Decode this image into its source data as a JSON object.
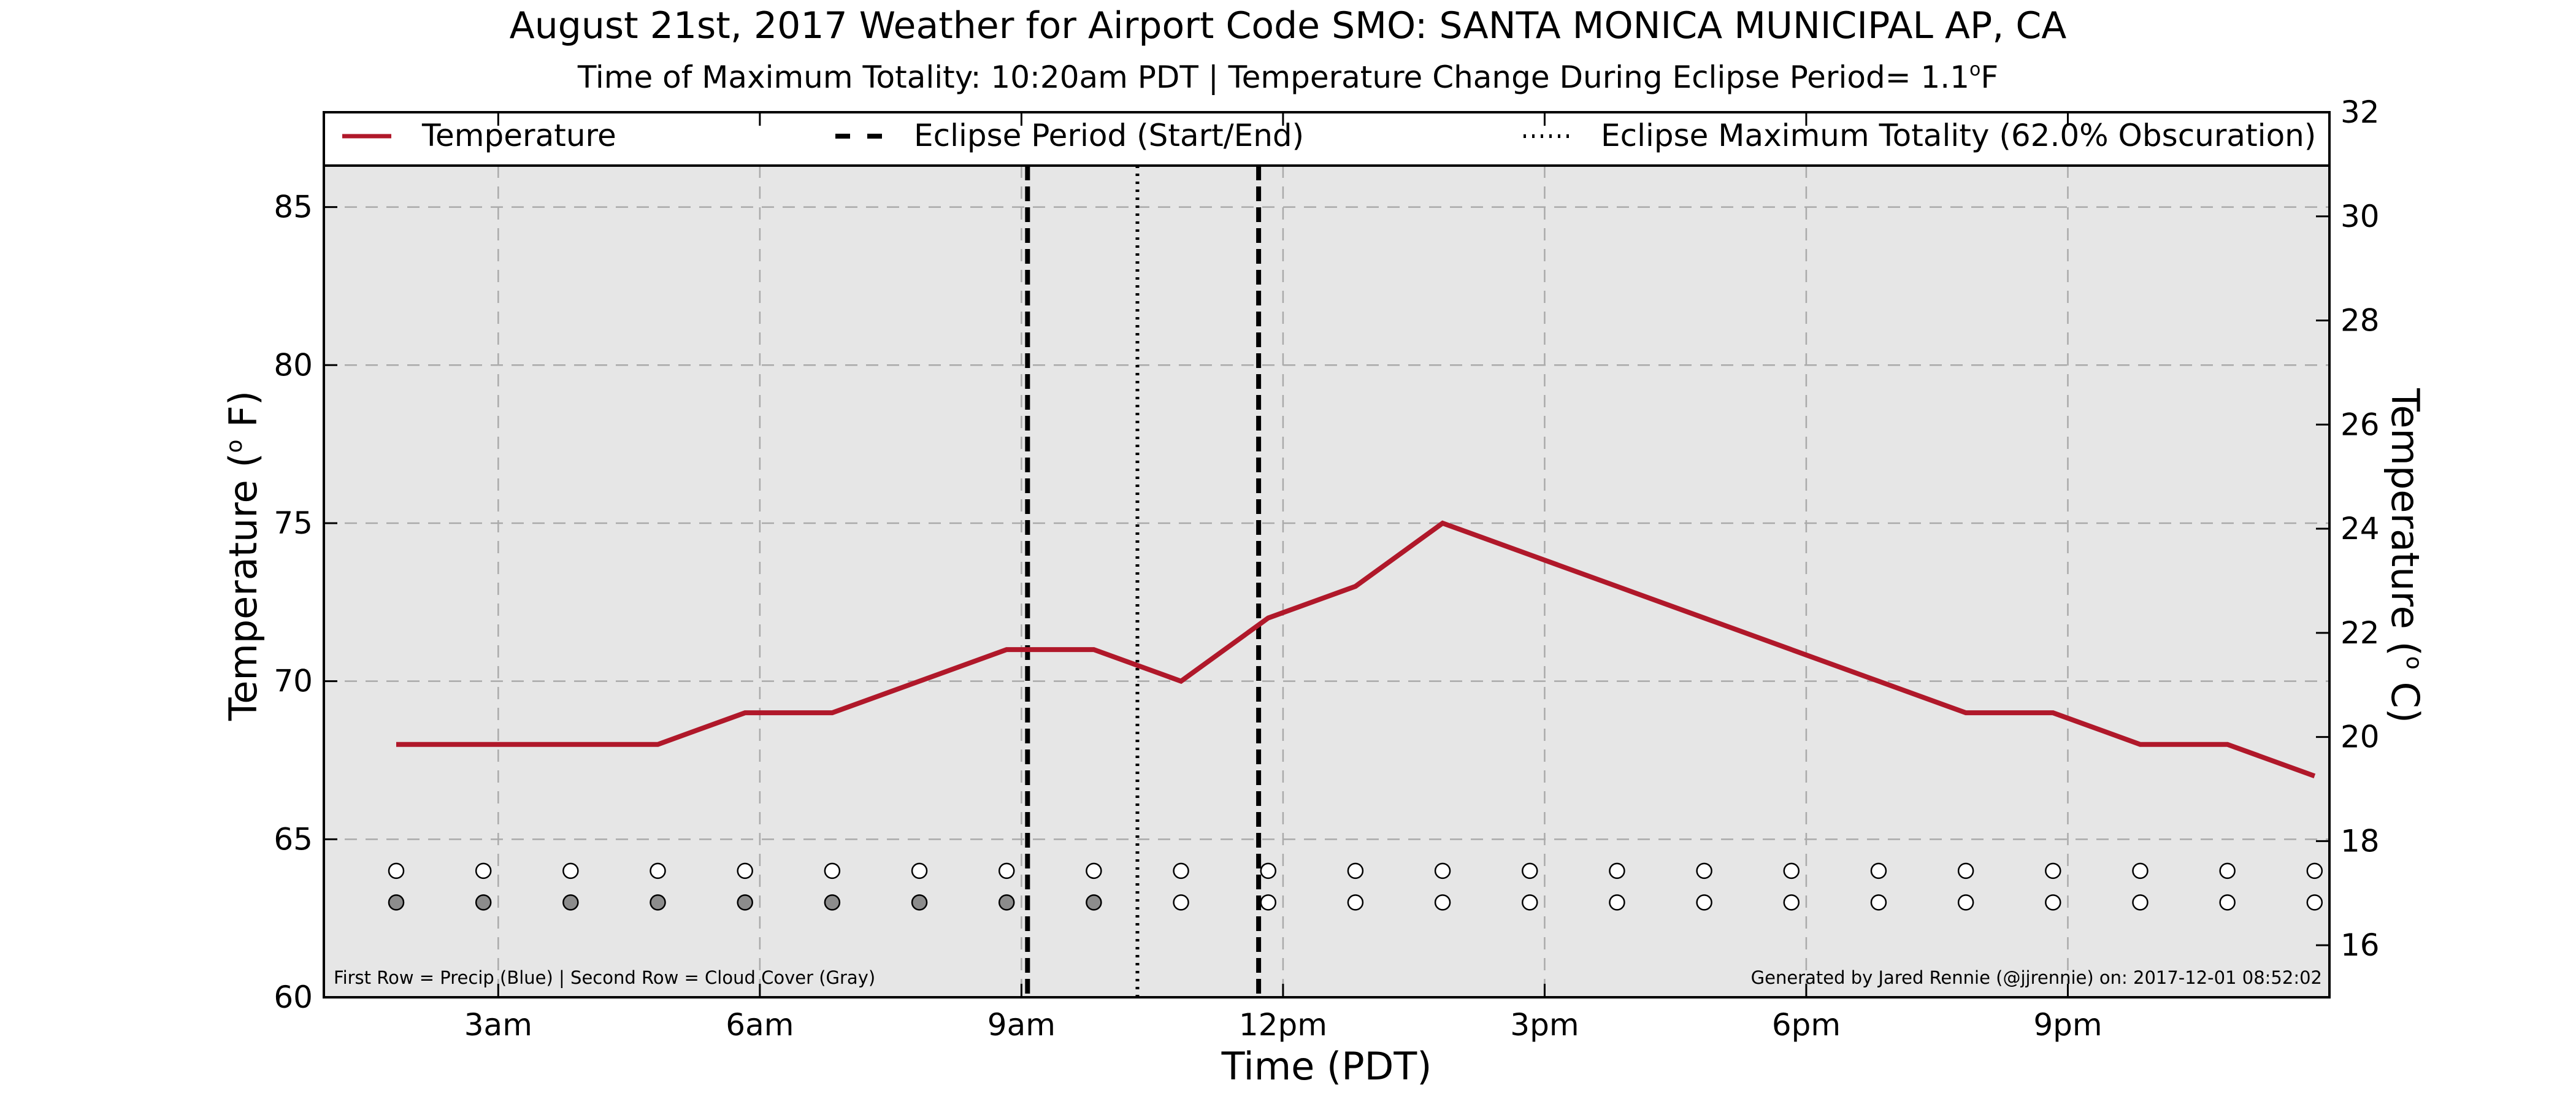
{
  "chart_data": {
    "type": "line",
    "title": "August 21st, 2017 Weather for Airport Code SMO: SANTA MONICA MUNICIPAL AP, CA",
    "subtitle_prefix": "Time of Maximum Totality: 10:20am PDT | Temperature Change During Eclipse Period= 1.1",
    "subtitle_sup": "o",
    "subtitle_unit": "F",
    "xlabel": "Time (PDT)",
    "ylabel_left_prefix": "Temperature (",
    "ylabel_left_sup": "o",
    "ylabel_left_suffix": " F)",
    "ylabel_right_prefix": "Temperature (",
    "ylabel_right_sup": "o",
    "ylabel_right_suffix": " C)",
    "xlim_hours": [
      1,
      24
    ],
    "ylim_left": [
      60,
      88
    ],
    "ylim_right": [
      15,
      32
    ],
    "x_ticks": [
      {
        "hour": 3,
        "label": "3am"
      },
      {
        "hour": 6,
        "label": "6am"
      },
      {
        "hour": 9,
        "label": "9am"
      },
      {
        "hour": 12,
        "label": "12pm"
      },
      {
        "hour": 15,
        "label": "3pm"
      },
      {
        "hour": 18,
        "label": "6pm"
      },
      {
        "hour": 21,
        "label": "9pm"
      }
    ],
    "y_ticks_left": [
      60,
      65,
      70,
      75,
      80,
      85
    ],
    "y_ticks_right": [
      16,
      18,
      20,
      22,
      24,
      26,
      28,
      30,
      32
    ],
    "grid": true,
    "legend_placement": "top",
    "series": [
      {
        "name": "Temperature",
        "color": "#b0182a",
        "points": [
          {
            "hour": 1.83,
            "value": 68
          },
          {
            "hour": 2.83,
            "value": 68
          },
          {
            "hour": 3.83,
            "value": 68
          },
          {
            "hour": 4.83,
            "value": 68
          },
          {
            "hour": 5.83,
            "value": 69
          },
          {
            "hour": 6.83,
            "value": 69
          },
          {
            "hour": 7.83,
            "value": 70
          },
          {
            "hour": 8.83,
            "value": 71
          },
          {
            "hour": 9.83,
            "value": 71
          },
          {
            "hour": 10.83,
            "value": 70
          },
          {
            "hour": 11.83,
            "value": 72
          },
          {
            "hour": 12.83,
            "value": 73
          },
          {
            "hour": 13.83,
            "value": 75
          },
          {
            "hour": 14.83,
            "value": 74
          },
          {
            "hour": 15.83,
            "value": 73
          },
          {
            "hour": 16.83,
            "value": 72
          },
          {
            "hour": 17.83,
            "value": 71
          },
          {
            "hour": 18.83,
            "value": 70
          },
          {
            "hour": 19.83,
            "value": 69
          },
          {
            "hour": 20.83,
            "value": 69
          },
          {
            "hour": 21.83,
            "value": 68
          },
          {
            "hour": 22.83,
            "value": 68
          },
          {
            "hour": 23.83,
            "value": 67
          }
        ]
      }
    ],
    "eclipse_start_hour": 9.07,
    "eclipse_end_hour": 11.72,
    "eclipse_max_hour": 10.33,
    "legend": {
      "temperature": "Temperature",
      "eclipse_period": "Eclipse Period (Start/End)",
      "eclipse_max": "Eclipse Maximum Totality (62.0% Obscuration)"
    },
    "marker_rows": {
      "precip_row_value": 64,
      "cloud_row_value": 63,
      "hours": [
        1.83,
        2.83,
        3.83,
        4.83,
        5.83,
        6.83,
        7.83,
        8.83,
        9.83,
        10.83,
        11.83,
        12.83,
        13.83,
        14.83,
        15.83,
        16.83,
        17.83,
        18.83,
        19.83,
        20.83,
        21.83,
        22.83,
        23.83
      ],
      "precip_colors": [
        "#ffffff",
        "#ffffff",
        "#ffffff",
        "#ffffff",
        "#ffffff",
        "#ffffff",
        "#ffffff",
        "#ffffff",
        "#ffffff",
        "#ffffff",
        "#ffffff",
        "#ffffff",
        "#ffffff",
        "#ffffff",
        "#ffffff",
        "#ffffff",
        "#ffffff",
        "#ffffff",
        "#ffffff",
        "#ffffff",
        "#ffffff",
        "#ffffff",
        "#ffffff"
      ],
      "cloud_colors": [
        "#8c8c8c",
        "#8c8c8c",
        "#8c8c8c",
        "#8c8c8c",
        "#8c8c8c",
        "#8c8c8c",
        "#8c8c8c",
        "#8c8c8c",
        "#8c8c8c",
        "#ffffff",
        "#ffffff",
        "#ffffff",
        "#ffffff",
        "#ffffff",
        "#ffffff",
        "#ffffff",
        "#ffffff",
        "#ffffff",
        "#ffffff",
        "#ffffff",
        "#ffffff",
        "#ffffff",
        "#ffffff"
      ]
    },
    "footnote_left": "First Row = Precip (Blue) | Second Row = Cloud Cover (Gray)",
    "footnote_right": "Generated by Jared Rennie (@jjrennie) on: 2017-12-01 08:52:02",
    "colors": {
      "plot_background": "#e6e6e6",
      "grid": "#aaaaaa",
      "temperature_line": "#b0182a",
      "eclipse_lines": "#000000"
    }
  }
}
